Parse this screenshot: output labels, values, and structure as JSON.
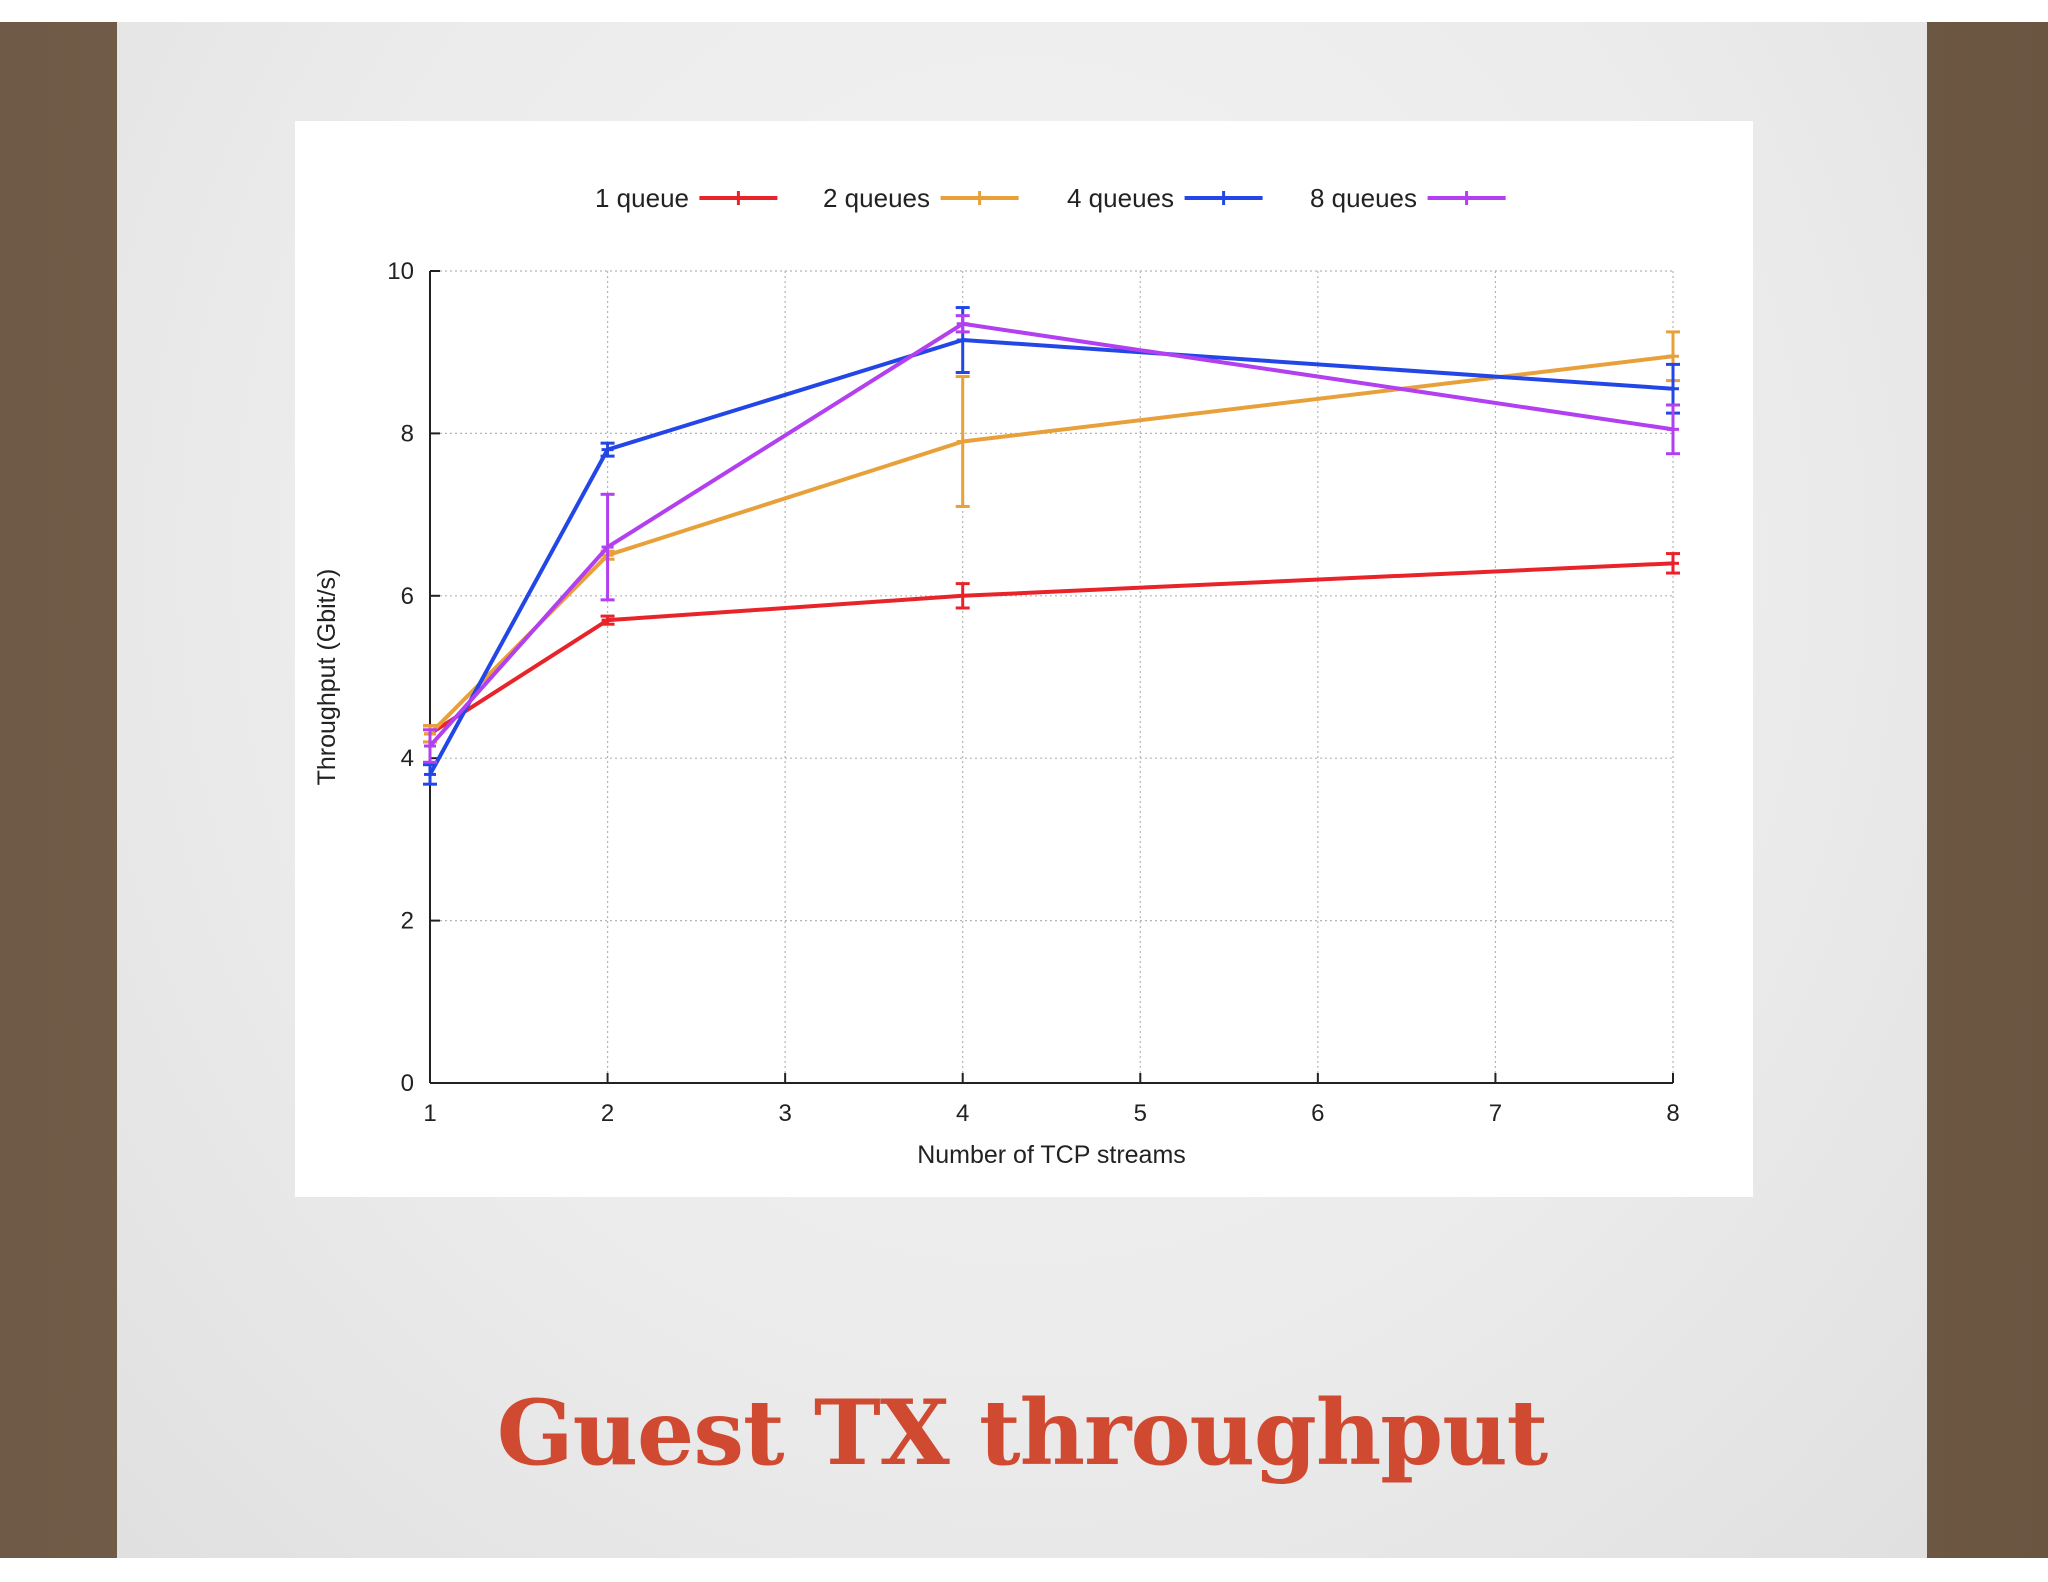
{
  "slide": {
    "title": "Guest TX throughput",
    "title_color": "#d04a32"
  },
  "chart_data": {
    "type": "line",
    "title": "",
    "xlabel": "Number of TCP streams",
    "ylabel": "Throughput (Gbit/s)",
    "xlim": [
      1,
      8
    ],
    "ylim": [
      0,
      10
    ],
    "xticks": [
      "1",
      "2",
      "3",
      "4",
      "5",
      "6",
      "7",
      "8"
    ],
    "yticks": [
      "0",
      "2",
      "4",
      "6",
      "8",
      "10"
    ],
    "grid": true,
    "legend_position": "top",
    "error_bars": true,
    "series": [
      {
        "name": "1 queue",
        "color": "#e8232a",
        "x": [
          1,
          2,
          4,
          8
        ],
        "y": [
          4.3,
          5.7,
          6.0,
          6.4
        ],
        "err": [
          0.1,
          0.05,
          0.15,
          0.12
        ]
      },
      {
        "name": "2 queues",
        "color": "#e8a03a",
        "x": [
          1,
          2,
          4,
          8
        ],
        "y": [
          4.3,
          6.5,
          7.9,
          8.95
        ],
        "err": [
          0.1,
          0.05,
          0.8,
          0.3
        ]
      },
      {
        "name": "4 queues",
        "color": "#2347e6",
        "x": [
          1,
          2,
          4,
          8
        ],
        "y": [
          3.8,
          7.8,
          9.15,
          8.55
        ],
        "err": [
          0.12,
          0.08,
          0.4,
          0.3
        ]
      },
      {
        "name": "8 queues",
        "color": "#b23ff0",
        "x": [
          1,
          2,
          4,
          8
        ],
        "y": [
          4.15,
          6.6,
          9.35,
          8.05
        ],
        "err": [
          0.2,
          0.65,
          0.1,
          0.3
        ]
      }
    ]
  }
}
